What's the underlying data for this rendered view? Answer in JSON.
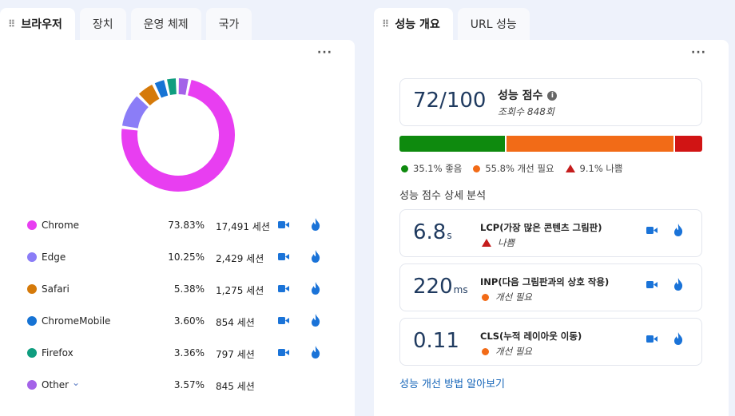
{
  "left_tabs": [
    "브라우저",
    "장치",
    "운영 체제",
    "국가"
  ],
  "right_tabs": [
    "성능 개요",
    "URL 성능"
  ],
  "more_label": "···",
  "browsers": [
    {
      "name": "Chrome",
      "pct": "73.83%",
      "sessions": "17,491 세션",
      "share": 73.83,
      "color": "#e83ef1",
      "icons": true
    },
    {
      "name": "Edge",
      "pct": "10.25%",
      "sessions": "2,429 세션",
      "share": 10.25,
      "color": "#8b7df7",
      "icons": true
    },
    {
      "name": "Safari",
      "pct": "5.38%",
      "sessions": "1,275 세션",
      "share": 5.38,
      "color": "#d57a0a",
      "icons": true
    },
    {
      "name": "ChromeMobile",
      "pct": "3.60%",
      "sessions": "854 세션",
      "share": 3.6,
      "color": "#1673d4",
      "icons": true
    },
    {
      "name": "Firefox",
      "pct": "3.36%",
      "sessions": "797 세션",
      "share": 3.36,
      "color": "#0f9d7f",
      "icons": true
    },
    {
      "name": "Other",
      "pct": "3.57%",
      "sessions": "845 세션",
      "share": 3.57,
      "color": "#a463e8",
      "icons": false
    }
  ],
  "performance": {
    "score": "72/100",
    "score_label": "성능 점수",
    "views": "조회수 848회",
    "good": {
      "label": "35.1% 좋음",
      "value": 35.1,
      "color": "#0e8a0e"
    },
    "needs": {
      "label": "55.8% 개선 필요",
      "value": 55.8,
      "color": "#f26b17"
    },
    "poor": {
      "label": "9.1% 나쁨",
      "value": 9.1,
      "color": "#d11414"
    },
    "breakdown_title": "성능 점수 상세 분석",
    "metrics": [
      {
        "value": "6.8",
        "unit": "s",
        "name": "LCP(가장 많은 콘텐츠 그림판)",
        "status": "나쁨",
        "status_type": "poor"
      },
      {
        "value": "220",
        "unit": "ms",
        "name": "INP(다음 그림판과의 상호 작용)",
        "status": "개선 필요",
        "status_type": "needs"
      },
      {
        "value": "0.11",
        "unit": "",
        "name": "CLS(누적 레이아웃 이동)",
        "status": "개선 필요",
        "status_type": "needs"
      }
    ],
    "learn_link": "성능 개선 방법 알아보기"
  }
}
